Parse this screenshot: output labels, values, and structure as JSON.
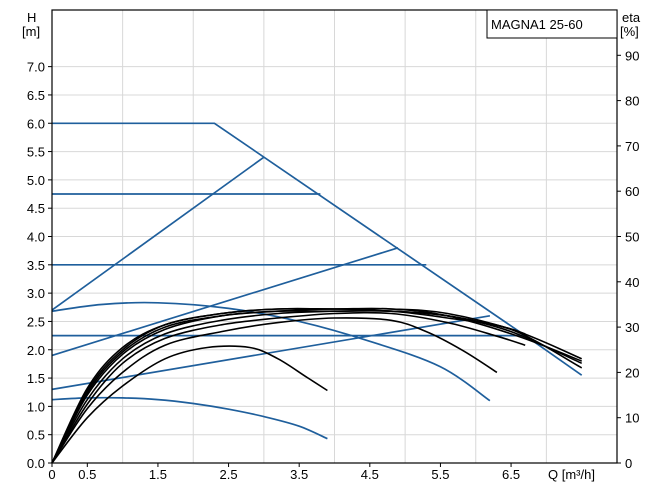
{
  "chart_data": {
    "type": "line",
    "title": "MAGNA1 25-60",
    "left_axis": {
      "label": "H",
      "unit": "[m]",
      "range": [
        0,
        8.0
      ],
      "ticks": [
        "0.0",
        "0.5",
        "1.0",
        "1.5",
        "2.0",
        "2.5",
        "3.0",
        "3.5",
        "4.0",
        "4.5",
        "5.0",
        "5.5",
        "6.0",
        "6.5",
        "7.0"
      ]
    },
    "right_axis": {
      "label": "eta",
      "unit": "[%]",
      "range": [
        0,
        100
      ],
      "ticks": [
        "0",
        "10",
        "20",
        "30",
        "40",
        "50",
        "60",
        "70",
        "80",
        "90"
      ]
    },
    "x_axis": {
      "label": "Q [m³/h]",
      "range": [
        0,
        8.0
      ],
      "ticks": [
        {
          "value": 0,
          "label": "0"
        },
        {
          "value": 0.5,
          "label": "0.5"
        },
        {
          "value": 1.5,
          "label": "1.5"
        },
        {
          "value": 2.5,
          "label": "2.5"
        },
        {
          "value": 3.5,
          "label": "3.5"
        },
        {
          "value": 4.5,
          "label": "4.5"
        },
        {
          "value": 5.5,
          "label": "5.5"
        },
        {
          "value": 6.5,
          "label": "6.5"
        }
      ],
      "grid_values": [
        0,
        1,
        2,
        3,
        4,
        5,
        6,
        7,
        8
      ]
    },
    "grid": true,
    "colors": {
      "head_curves": "#1f5f9c",
      "efficiency_curves": "#000000",
      "grid": "#d8d8d8",
      "frame": "#000000"
    },
    "head_curves": [
      {
        "points": [
          [
            0,
            6.0
          ],
          [
            2.3,
            6.0
          ],
          [
            6.7,
            2.25
          ],
          [
            7.5,
            1.55
          ]
        ]
      },
      {
        "points": [
          [
            0,
            2.7
          ],
          [
            3.0,
            5.4
          ]
        ]
      },
      {
        "points": [
          [
            0,
            4.75
          ],
          [
            3.8,
            4.75
          ]
        ]
      },
      {
        "points": [
          [
            0,
            1.9
          ],
          [
            4.9,
            3.8
          ]
        ]
      },
      {
        "points": [
          [
            0,
            3.5
          ],
          [
            5.3,
            3.5
          ]
        ]
      },
      {
        "points": [
          [
            0,
            1.3
          ],
          [
            6.2,
            2.6
          ]
        ]
      },
      {
        "points": [
          [
            0,
            2.25
          ],
          [
            6.7,
            2.25
          ]
        ]
      },
      {
        "points": [
          [
            0,
            2.68
          ],
          [
            0.7,
            2.8
          ],
          [
            1.5,
            2.83
          ],
          [
            2.5,
            2.73
          ],
          [
            3.5,
            2.5
          ],
          [
            4.5,
            2.15
          ],
          [
            5.5,
            1.7
          ],
          [
            6.2,
            1.1
          ]
        ]
      },
      {
        "points": [
          [
            0,
            1.12
          ],
          [
            0.5,
            1.15
          ],
          [
            1.0,
            1.15
          ],
          [
            1.5,
            1.12
          ],
          [
            2.0,
            1.05
          ],
          [
            2.5,
            0.95
          ],
          [
            3.0,
            0.82
          ],
          [
            3.5,
            0.65
          ],
          [
            3.9,
            0.43
          ]
        ]
      }
    ],
    "efficiency_curves": [
      {
        "points": [
          [
            0,
            0
          ],
          [
            0.5,
            10
          ],
          [
            1.0,
            17
          ],
          [
            1.6,
            23
          ],
          [
            2.2,
            25.5
          ],
          [
            2.8,
            25.5
          ],
          [
            3.2,
            23
          ],
          [
            3.6,
            19
          ],
          [
            3.9,
            16
          ]
        ]
      },
      {
        "points": [
          [
            0,
            0
          ],
          [
            0.5,
            12
          ],
          [
            1.0,
            20
          ],
          [
            1.6,
            26
          ],
          [
            2.4,
            29
          ],
          [
            3.2,
            31
          ],
          [
            4.0,
            32
          ],
          [
            4.8,
            31.5
          ],
          [
            5.3,
            29
          ],
          [
            5.8,
            25
          ],
          [
            6.3,
            20
          ]
        ]
      },
      {
        "points": [
          [
            0,
            0
          ],
          [
            0.5,
            13
          ],
          [
            1.0,
            22
          ],
          [
            1.6,
            27.5
          ],
          [
            2.4,
            30.5
          ],
          [
            3.2,
            32
          ],
          [
            4.0,
            33
          ],
          [
            4.8,
            33
          ],
          [
            5.6,
            31
          ],
          [
            6.3,
            28
          ],
          [
            6.7,
            26
          ]
        ]
      },
      {
        "points": [
          [
            0,
            0
          ],
          [
            0.5,
            14
          ],
          [
            1.0,
            23
          ],
          [
            1.6,
            28.5
          ],
          [
            2.4,
            31.5
          ],
          [
            3.2,
            33
          ],
          [
            4.0,
            33.5
          ],
          [
            4.8,
            33.5
          ],
          [
            5.6,
            32.5
          ],
          [
            6.4,
            30
          ],
          [
            6.7,
            28.5
          ]
        ]
      },
      {
        "points": [
          [
            0,
            0
          ],
          [
            0.5,
            15
          ],
          [
            1.0,
            24
          ],
          [
            1.6,
            29.5
          ],
          [
            2.4,
            32.5
          ],
          [
            3.2,
            33.5
          ],
          [
            4.0,
            33.5
          ],
          [
            4.8,
            33.5
          ],
          [
            5.6,
            32
          ],
          [
            6.5,
            29.5
          ],
          [
            7.5,
            21
          ]
        ]
      },
      {
        "points": [
          [
            0,
            0
          ],
          [
            0.5,
            15.5
          ],
          [
            1.0,
            24.5
          ],
          [
            1.6,
            30
          ],
          [
            2.4,
            32.5
          ],
          [
            3.2,
            33.5
          ],
          [
            4.0,
            34
          ],
          [
            4.8,
            33.5
          ],
          [
            5.6,
            32.5
          ],
          [
            6.5,
            29
          ],
          [
            7.5,
            22
          ]
        ]
      },
      {
        "points": [
          [
            0,
            0
          ],
          [
            0.5,
            16
          ],
          [
            1.0,
            25
          ],
          [
            1.6,
            30.5
          ],
          [
            2.4,
            33
          ],
          [
            3.2,
            34
          ],
          [
            4.0,
            34
          ],
          [
            4.8,
            34
          ],
          [
            5.6,
            33
          ],
          [
            6.6,
            29
          ],
          [
            7.5,
            23
          ]
        ]
      },
      {
        "points": [
          [
            0,
            0
          ],
          [
            0.5,
            16.5
          ],
          [
            1.0,
            25.5
          ],
          [
            1.6,
            30.5
          ],
          [
            2.4,
            33
          ],
          [
            3.2,
            34
          ],
          [
            4.0,
            34
          ],
          [
            4.8,
            34
          ],
          [
            5.6,
            32.5
          ],
          [
            6.6,
            28
          ],
          [
            7.5,
            22.5
          ]
        ]
      }
    ]
  }
}
